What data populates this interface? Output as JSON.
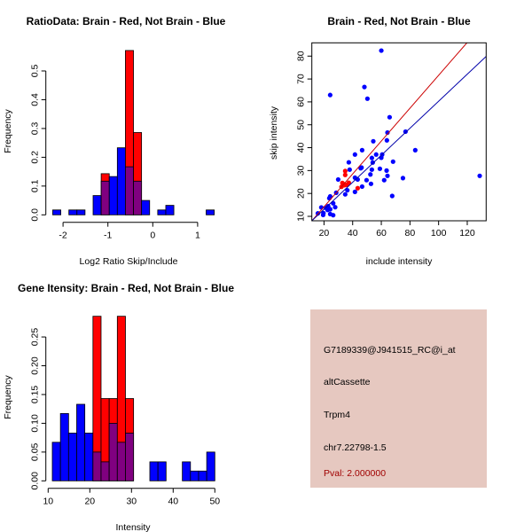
{
  "colors": {
    "red": "#ff0000",
    "blue": "#0000ff",
    "overlap": "#800080",
    "panel_bg": "#e6c8c0",
    "pval_text": "#a00000"
  },
  "chart_data": [
    {
      "type": "bar",
      "title": "RatioData: Brain - Red, Not Brain - Blue",
      "xlabel": "Log2 Ratio Skip/Include",
      "ylabel": "Frequency",
      "xlim": [
        -2.23,
        1.37
      ],
      "ylim": [
        0,
        0.57
      ],
      "xticks": [
        -2,
        -1,
        0,
        1
      ],
      "yticks": [
        "0.0",
        "0.1",
        "0.2",
        "0.3",
        "0.4",
        "0.5"
      ],
      "bin_start": -2.23,
      "bin_width": 0.18,
      "series": [
        {
          "name": "Not Brain",
          "color": "blue",
          "values": [
            0.017,
            0,
            0.017,
            0.017,
            0,
            0.067,
            0.117,
            0.133,
            0.233,
            0.167,
            0.117,
            0.05,
            0,
            0.017,
            0.033,
            0,
            0,
            0,
            0,
            0.017
          ]
        },
        {
          "name": "Brain",
          "color": "red",
          "values": [
            0,
            0,
            0,
            0,
            0,
            0,
            0.143,
            0,
            0,
            0.571,
            0.286,
            0,
            0,
            0,
            0,
            0,
            0,
            0,
            0,
            0
          ]
        }
      ]
    },
    {
      "type": "scatter",
      "title": "Brain - Red, Not Brain - Blue",
      "xlabel": "include intensity",
      "ylabel": "skip intensity",
      "xlim": [
        11.5,
        133.2
      ],
      "ylim": [
        8.06,
        85.8
      ],
      "xticks": [
        20,
        40,
        60,
        80,
        100,
        120
      ],
      "yticks": [
        10,
        20,
        30,
        40,
        50,
        60,
        70,
        80
      ],
      "series": [
        {
          "name": "Not Brain",
          "color": "blue",
          "points": [
            [
              60,
              82.4
            ],
            [
              24.3,
              63
            ],
            [
              48.2,
              66.5
            ],
            [
              50.3,
              61.4
            ],
            [
              65.8,
              53.3
            ],
            [
              76.9,
              47
            ],
            [
              64.3,
              46.6
            ],
            [
              63.9,
              43.2
            ],
            [
              54.4,
              42.8
            ],
            [
              83.7,
              38.9
            ],
            [
              46.6,
              38.9
            ],
            [
              41.6,
              37
            ],
            [
              56.4,
              37
            ],
            [
              60.6,
              37
            ],
            [
              60,
              35.6
            ],
            [
              53.4,
              35.5
            ],
            [
              68.2,
              33.9
            ],
            [
              37.3,
              33.6
            ],
            [
              54,
              33.5
            ],
            [
              45.6,
              31
            ],
            [
              46.2,
              31.3
            ],
            [
              37.9,
              30.4
            ],
            [
              53.4,
              30.4
            ],
            [
              59,
              30.8
            ],
            [
              63.7,
              30
            ],
            [
              52.4,
              28.3
            ],
            [
              64.3,
              27.7
            ],
            [
              62,
              25.8
            ],
            [
              75.1,
              26.7
            ],
            [
              128.7,
              27.7
            ],
            [
              41.6,
              26.9
            ],
            [
              43.5,
              26.1
            ],
            [
              49.7,
              25.8
            ],
            [
              29.9,
              26.1
            ],
            [
              46.6,
              23
            ],
            [
              52.8,
              24.2
            ],
            [
              41.6,
              20.7
            ],
            [
              36.3,
              21.4
            ],
            [
              34.8,
              19.6
            ],
            [
              28.5,
              20.3
            ],
            [
              67.6,
              18.9
            ],
            [
              24.3,
              18.7
            ],
            [
              23.7,
              17.9
            ],
            [
              26.4,
              15.7
            ],
            [
              27.8,
              14
            ],
            [
              22.9,
              14.4
            ],
            [
              21.4,
              13.7
            ],
            [
              18.1,
              13.9
            ],
            [
              24.3,
              13.1
            ],
            [
              22.5,
              12.8
            ],
            [
              15.7,
              11.3
            ],
            [
              19.6,
              11.4
            ],
            [
              19.4,
              10.6
            ],
            [
              24.3,
              11
            ],
            [
              26.4,
              10.5
            ]
          ]
        },
        {
          "name": "Brain",
          "color": "red",
          "points": [
            [
              34.8,
              29.8
            ],
            [
              34.8,
              28.1
            ],
            [
              32.8,
              24.6
            ],
            [
              34,
              24
            ],
            [
              35.9,
              23.8
            ],
            [
              37.3,
              24.7
            ],
            [
              32.2,
              22.9
            ],
            [
              34.2,
              23.6
            ],
            [
              43.5,
              22.3
            ]
          ]
        }
      ],
      "fit_lines": [
        {
          "name": "Brain fit",
          "color": "red",
          "intercept": -0.2,
          "slope": 0.718
        },
        {
          "name": "Not Brain fit",
          "color": "blue",
          "intercept": 1.28,
          "slope": 0.59
        }
      ]
    },
    {
      "type": "bar",
      "title": "Gene Itensity: Brain - Red, Not Brain - Blue",
      "xlabel": "Intensity",
      "ylabel": "Frequency",
      "xlim": [
        11,
        50
      ],
      "ylim": [
        0,
        0.286
      ],
      "xticks": [
        10,
        20,
        30,
        40,
        50
      ],
      "yticks": [
        "0.00",
        "0.05",
        "0.10",
        "0.15",
        "0.20",
        "0.25"
      ],
      "bin_start": 11,
      "bin_width": 1.95,
      "series": [
        {
          "name": "Not Brain",
          "color": "blue",
          "values": [
            0.067,
            0.117,
            0.083,
            0.133,
            0.083,
            0.05,
            0.033,
            0.1,
            0.067,
            0.083,
            0,
            0,
            0.033,
            0.033,
            0,
            0,
            0.033,
            0.017,
            0.017,
            0.05
          ]
        },
        {
          "name": "Brain",
          "color": "red",
          "values": [
            0,
            0,
            0,
            0,
            0,
            0.286,
            0.143,
            0.143,
            0.286,
            0.143,
            0,
            0,
            0,
            0,
            0,
            0,
            0,
            0,
            0,
            0
          ]
        }
      ]
    }
  ],
  "info_panel": {
    "probe_id": "G7189339@J941515_RC@i_at",
    "event_type": "altCassette",
    "gene": "Trpm4",
    "location": "chr7.22798-1.5",
    "pval": "Pval: 2.000000"
  }
}
